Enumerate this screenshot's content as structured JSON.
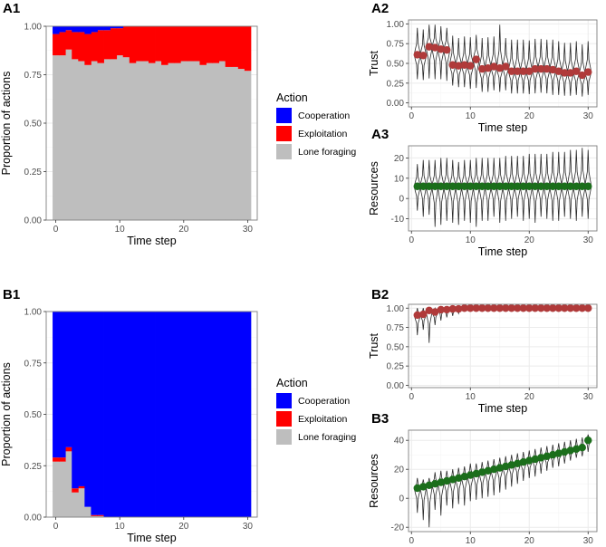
{
  "colors": {
    "cooperation": "#0000FF",
    "exploitation": "#FF0000",
    "lone_foraging": "#BEBEBE",
    "trust_point": "#B03A3A",
    "resources_point": "#1B6E1B",
    "violin_line": "#2b2b2b",
    "grid_major": "#EBEBEB",
    "grid_minor": "#F5F5F5",
    "panel_border": "#7F7F7F"
  },
  "legend_A": {
    "title": "Action",
    "items": [
      {
        "key": "cooperation",
        "label": "Cooperation"
      },
      {
        "key": "exploitation",
        "label": "Exploitation"
      },
      {
        "key": "lone_foraging",
        "label": "Lone foraging"
      }
    ]
  },
  "legend_B": {
    "title": "Action",
    "items": [
      {
        "key": "cooperation",
        "label": "Cooperation"
      },
      {
        "key": "exploitation",
        "label": "Exploitation"
      },
      {
        "key": "lone_foraging",
        "label": "Lone foraging"
      }
    ]
  },
  "chart_data": [
    {
      "id": "A1",
      "panel_label": "A1",
      "type": "area",
      "stacked": true,
      "xlabel": "Time step",
      "ylabel": "Proportion of actions",
      "xlim": [
        -1.5,
        31.5
      ],
      "ylim": [
        0,
        1
      ],
      "xticks": [
        0,
        10,
        20,
        30
      ],
      "yticks": [
        0.0,
        0.25,
        0.5,
        0.75,
        1.0
      ],
      "ytick_labels": [
        "0.00",
        "0.25",
        "0.50",
        "0.75",
        "1.00"
      ],
      "x": [
        0,
        1,
        2,
        3,
        4,
        5,
        6,
        7,
        8,
        9,
        10,
        11,
        12,
        13,
        14,
        15,
        16,
        17,
        18,
        19,
        20,
        21,
        22,
        23,
        24,
        25,
        26,
        27,
        28,
        29,
        30
      ],
      "series": [
        {
          "name": "Lone foraging",
          "key": "lone_foraging",
          "values": [
            0.85,
            0.85,
            0.88,
            0.83,
            0.82,
            0.8,
            0.82,
            0.81,
            0.83,
            0.83,
            0.85,
            0.84,
            0.81,
            0.82,
            0.82,
            0.81,
            0.82,
            0.8,
            0.81,
            0.81,
            0.82,
            0.82,
            0.82,
            0.8,
            0.81,
            0.81,
            0.82,
            0.79,
            0.79,
            0.78,
            0.77
          ]
        },
        {
          "name": "Exploitation",
          "key": "exploitation",
          "values": [
            0.11,
            0.12,
            0.1,
            0.14,
            0.15,
            0.16,
            0.15,
            0.17,
            0.15,
            0.16,
            0.14,
            0.16,
            0.19,
            0.18,
            0.18,
            0.19,
            0.18,
            0.2,
            0.19,
            0.19,
            0.18,
            0.18,
            0.18,
            0.2,
            0.19,
            0.19,
            0.18,
            0.21,
            0.21,
            0.22,
            0.23
          ]
        },
        {
          "name": "Cooperation",
          "key": "cooperation",
          "values": [
            0.04,
            0.03,
            0.02,
            0.03,
            0.03,
            0.04,
            0.03,
            0.02,
            0.02,
            0.01,
            0.01,
            0.0,
            0.0,
            0.0,
            0.0,
            0.0,
            0.0,
            0.0,
            0.0,
            0.0,
            0.0,
            0.0,
            0.0,
            0.0,
            0.0,
            0.0,
            0.0,
            0.0,
            0.0,
            0.0,
            0.0
          ]
        }
      ]
    },
    {
      "id": "A2",
      "panel_label": "A2",
      "type": "scatter",
      "subtype": "violin",
      "xlabel": "Time step",
      "ylabel": "Trust",
      "xlim": [
        -0.5,
        31.5
      ],
      "ylim": [
        -0.05,
        1.05
      ],
      "xticks": [
        0,
        10,
        20,
        30
      ],
      "yticks": [
        0.0,
        0.25,
        0.5,
        0.75,
        1.0
      ],
      "ytick_labels": [
        "0.00",
        "0.25",
        "0.50",
        "0.75",
        "1.00"
      ],
      "x": [
        1,
        2,
        3,
        4,
        5,
        6,
        7,
        8,
        9,
        10,
        11,
        12,
        13,
        14,
        15,
        16,
        17,
        18,
        19,
        20,
        21,
        22,
        23,
        24,
        25,
        26,
        27,
        28,
        29,
        30
      ],
      "values": [
        0.61,
        0.6,
        0.71,
        0.7,
        0.68,
        0.67,
        0.48,
        0.47,
        0.48,
        0.47,
        0.55,
        0.43,
        0.44,
        0.46,
        0.44,
        0.46,
        0.4,
        0.4,
        0.4,
        0.4,
        0.43,
        0.43,
        0.43,
        0.42,
        0.4,
        0.38,
        0.38,
        0.4,
        0.35,
        0.39
      ],
      "spread_low": [
        0.3,
        0.29,
        0.31,
        0.3,
        0.3,
        0.28,
        0.22,
        0.2,
        0.2,
        0.18,
        0.19,
        0.14,
        0.14,
        0.16,
        0.14,
        0.16,
        0.12,
        0.12,
        0.12,
        0.11,
        0.12,
        0.13,
        0.12,
        0.1,
        0.1,
        0.09,
        0.09,
        0.1,
        0.08,
        0.1
      ],
      "spread_high": [
        0.95,
        0.93,
        0.99,
        0.99,
        0.97,
        0.95,
        0.85,
        0.82,
        0.84,
        0.83,
        0.86,
        0.82,
        0.83,
        0.84,
        0.99,
        0.82,
        0.8,
        0.8,
        0.8,
        0.79,
        0.81,
        0.81,
        0.8,
        0.8,
        0.78,
        0.76,
        0.76,
        0.78,
        0.74,
        0.78
      ]
    },
    {
      "id": "A3",
      "panel_label": "A3",
      "type": "scatter",
      "subtype": "violin",
      "xlabel": "Time step",
      "ylabel": "Resources",
      "xlim": [
        -0.5,
        31.5
      ],
      "ylim": [
        -16,
        26
      ],
      "xticks": [
        0,
        10,
        20,
        30
      ],
      "yticks": [
        -10,
        0,
        10,
        20
      ],
      "ytick_labels": [
        "-10",
        "0",
        "10",
        "20"
      ],
      "x": [
        1,
        2,
        3,
        4,
        5,
        6,
        7,
        8,
        9,
        10,
        11,
        12,
        13,
        14,
        15,
        16,
        17,
        18,
        19,
        20,
        21,
        22,
        23,
        24,
        25,
        26,
        27,
        28,
        29,
        30
      ],
      "values": [
        6,
        6,
        6,
        6,
        6,
        6,
        6,
        6,
        6,
        6,
        6,
        6,
        6,
        6,
        6,
        6,
        6,
        6,
        6,
        6,
        6,
        6,
        6,
        6,
        6,
        6,
        6,
        6,
        6,
        6
      ],
      "spread_low": [
        -6,
        -9,
        -8,
        -14,
        -13,
        -11,
        -12,
        -13,
        -11,
        -12,
        -14,
        -11,
        -11,
        -9,
        -12,
        -11,
        -10,
        -9,
        -11,
        -10,
        -12,
        -9,
        -10,
        -11,
        -11,
        -9,
        -10,
        -11,
        -9,
        -10
      ],
      "spread_high": [
        17,
        19,
        19,
        19,
        20,
        20,
        19,
        18,
        19,
        19,
        20,
        20,
        20,
        20,
        20,
        21,
        21,
        21,
        21,
        22,
        22,
        22,
        22,
        23,
        23,
        23,
        24,
        24,
        25,
        24
      ]
    },
    {
      "id": "B1",
      "panel_label": "B1",
      "type": "area",
      "stacked": true,
      "xlabel": "Time step",
      "ylabel": "Proportion of actions",
      "xlim": [
        -1.5,
        31.5
      ],
      "ylim": [
        0,
        1
      ],
      "xticks": [
        0,
        10,
        20,
        30
      ],
      "yticks": [
        0.0,
        0.25,
        0.5,
        0.75,
        1.0
      ],
      "ytick_labels": [
        "0.00",
        "0.25",
        "0.50",
        "0.75",
        "1.00"
      ],
      "x": [
        0,
        1,
        2,
        3,
        4,
        5,
        6,
        7,
        8,
        9,
        10,
        11,
        12,
        13,
        14,
        15,
        16,
        17,
        18,
        19,
        20,
        21,
        22,
        23,
        24,
        25,
        26,
        27,
        28,
        29,
        30
      ],
      "series": [
        {
          "name": "Lone foraging",
          "key": "lone_foraging",
          "values": [
            0.27,
            0.27,
            0.32,
            0.12,
            0.14,
            0.05,
            0.005,
            0.005,
            0,
            0,
            0,
            0,
            0,
            0,
            0,
            0,
            0,
            0,
            0,
            0,
            0,
            0,
            0,
            0,
            0,
            0,
            0,
            0,
            0,
            0,
            0
          ]
        },
        {
          "name": "Exploitation",
          "key": "exploitation",
          "values": [
            0.02,
            0.02,
            0.02,
            0.02,
            0.01,
            0.0,
            0.005,
            0.005,
            0,
            0,
            0,
            0,
            0,
            0,
            0,
            0,
            0,
            0,
            0,
            0,
            0,
            0,
            0,
            0,
            0,
            0,
            0,
            0,
            0,
            0,
            0
          ]
        },
        {
          "name": "Cooperation",
          "key": "cooperation",
          "values": [
            0.71,
            0.71,
            0.66,
            0.86,
            0.85,
            0.95,
            0.99,
            0.99,
            1,
            1,
            1,
            1,
            1,
            1,
            1,
            1,
            1,
            1,
            1,
            1,
            1,
            1,
            1,
            1,
            1,
            1,
            1,
            1,
            1,
            1,
            1
          ]
        }
      ]
    },
    {
      "id": "B2",
      "panel_label": "B2",
      "type": "scatter",
      "subtype": "violin",
      "xlabel": "Time step",
      "ylabel": "Trust",
      "xlim": [
        -0.5,
        31.5
      ],
      "ylim": [
        -0.03,
        1.05
      ],
      "xticks": [
        0,
        10,
        20,
        30
      ],
      "yticks": [
        0.0,
        0.25,
        0.5,
        0.75,
        1.0
      ],
      "ytick_labels": [
        "0.00",
        "0.25",
        "0.50",
        "0.75",
        "1.00"
      ],
      "x": [
        1,
        2,
        3,
        4,
        5,
        6,
        7,
        8,
        9,
        10,
        11,
        12,
        13,
        14,
        15,
        16,
        17,
        18,
        19,
        20,
        21,
        22,
        23,
        24,
        25,
        26,
        27,
        28,
        29,
        30
      ],
      "values": [
        0.91,
        0.92,
        0.97,
        0.95,
        0.98,
        0.98,
        0.99,
        0.99,
        1,
        1,
        1,
        1,
        1,
        1,
        1,
        1,
        1,
        1,
        1,
        1,
        1,
        1,
        1,
        1,
        1,
        1,
        1,
        1,
        1,
        1
      ],
      "spread_low": [
        0.65,
        0.72,
        0.55,
        0.78,
        0.84,
        0.88,
        0.9,
        0.93,
        0.97,
        1,
        1,
        1,
        1,
        1,
        1,
        1,
        1,
        1,
        1,
        1,
        1,
        1,
        1,
        1,
        1,
        1,
        1,
        1,
        1,
        1
      ],
      "spread_high": [
        1,
        1,
        1,
        1,
        1,
        1,
        1,
        1,
        1,
        1,
        1,
        1,
        1,
        1,
        1,
        1,
        1,
        1,
        1,
        1,
        1,
        1,
        1,
        1,
        1,
        1,
        1,
        1,
        1,
        1
      ]
    },
    {
      "id": "B3",
      "panel_label": "B3",
      "type": "scatter",
      "subtype": "violin",
      "xlabel": "Time step",
      "ylabel": "Resources",
      "xlim": [
        -0.5,
        31.5
      ],
      "ylim": [
        -23,
        47
      ],
      "xticks": [
        0,
        10,
        20,
        30
      ],
      "yticks": [
        -20,
        0,
        20,
        40
      ],
      "ytick_labels": [
        "-20",
        "0",
        "20",
        "40"
      ],
      "x": [
        1,
        2,
        3,
        4,
        5,
        6,
        7,
        8,
        9,
        10,
        11,
        12,
        13,
        14,
        15,
        16,
        17,
        18,
        19,
        20,
        21,
        22,
        23,
        24,
        25,
        26,
        27,
        28,
        29,
        30
      ],
      "values": [
        7,
        8,
        9,
        10,
        11,
        12,
        13,
        14,
        15,
        16,
        17,
        18,
        19,
        20,
        21,
        22,
        23,
        24,
        25,
        26,
        27,
        28,
        29,
        30,
        31,
        32,
        33,
        34,
        35,
        40
      ],
      "spread_low": [
        -10,
        -15,
        -20,
        -8,
        -12,
        -5,
        -7,
        -4,
        -5,
        -2,
        -1,
        0,
        1,
        2,
        4,
        6,
        8,
        10,
        12,
        14,
        15,
        17,
        19,
        21,
        22,
        24,
        26,
        28,
        29,
        32
      ],
      "spread_high": [
        14,
        13,
        14,
        18,
        19,
        19,
        20,
        21,
        22,
        24,
        24,
        25,
        26,
        27,
        28,
        29,
        30,
        31,
        32,
        33,
        34,
        35,
        36,
        37,
        38,
        39,
        40,
        41,
        42,
        44
      ]
    }
  ]
}
